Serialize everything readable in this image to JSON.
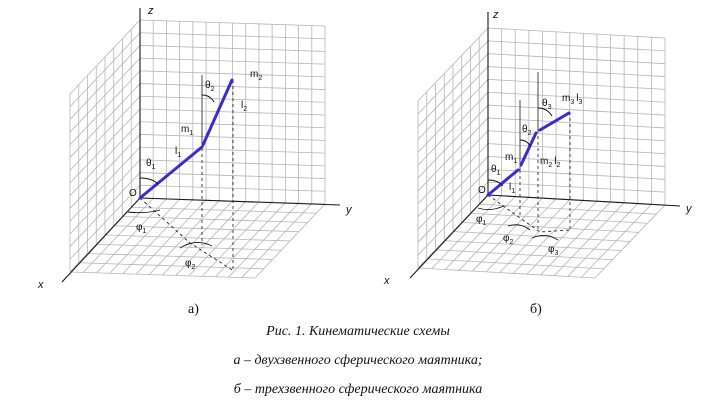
{
  "panel_a": {
    "label": "а)",
    "axes": {
      "x": "x",
      "y": "y",
      "z": "z",
      "origin": "O"
    },
    "symbols": [
      {
        "id": "theta1",
        "main": "θ",
        "sub": "1"
      },
      {
        "id": "theta2",
        "main": "θ",
        "sub": "2"
      },
      {
        "id": "l1",
        "main": "l",
        "sub": "1"
      },
      {
        "id": "l2",
        "main": "l",
        "sub": "2"
      },
      {
        "id": "m1",
        "main": "m",
        "sub": "1"
      },
      {
        "id": "m2",
        "main": "m",
        "sub": "2"
      },
      {
        "id": "phi1",
        "main": "φ",
        "sub": "1"
      },
      {
        "id": "phi2",
        "main": "φ",
        "sub": "2"
      }
    ]
  },
  "panel_b": {
    "label": "б)",
    "axes": {
      "x": "x",
      "y": "y",
      "z": "z",
      "origin": "O"
    },
    "symbols": [
      {
        "id": "theta1",
        "main": "θ",
        "sub": "1"
      },
      {
        "id": "theta2",
        "main": "θ",
        "sub": "2"
      },
      {
        "id": "theta3",
        "main": "θ",
        "sub": "3"
      },
      {
        "id": "l1",
        "main": "l",
        "sub": "1"
      },
      {
        "id": "m1",
        "main": "m",
        "sub": "1"
      },
      {
        "id": "m2l2",
        "main": "m",
        "sub": "2",
        "main2": "l",
        "sub2": "2"
      },
      {
        "id": "m3l3",
        "main": "m",
        "sub": "3",
        "main2": "l",
        "sub2": "3"
      },
      {
        "id": "phi1",
        "main": "φ",
        "sub": "1"
      },
      {
        "id": "phi2",
        "main": "φ",
        "sub": "2"
      },
      {
        "id": "phi3",
        "main": "φ",
        "sub": "3"
      }
    ]
  },
  "caption": {
    "line1": "Рис. 1. Кинематические схемы",
    "line2": "а – двухзвенного сферического маятника;",
    "line3": "б – трехзвенного сферического маятника"
  },
  "colors": {
    "link": "#3b2bd6",
    "grid": "#b5b5b5",
    "axis": "#1a1a1a"
  }
}
